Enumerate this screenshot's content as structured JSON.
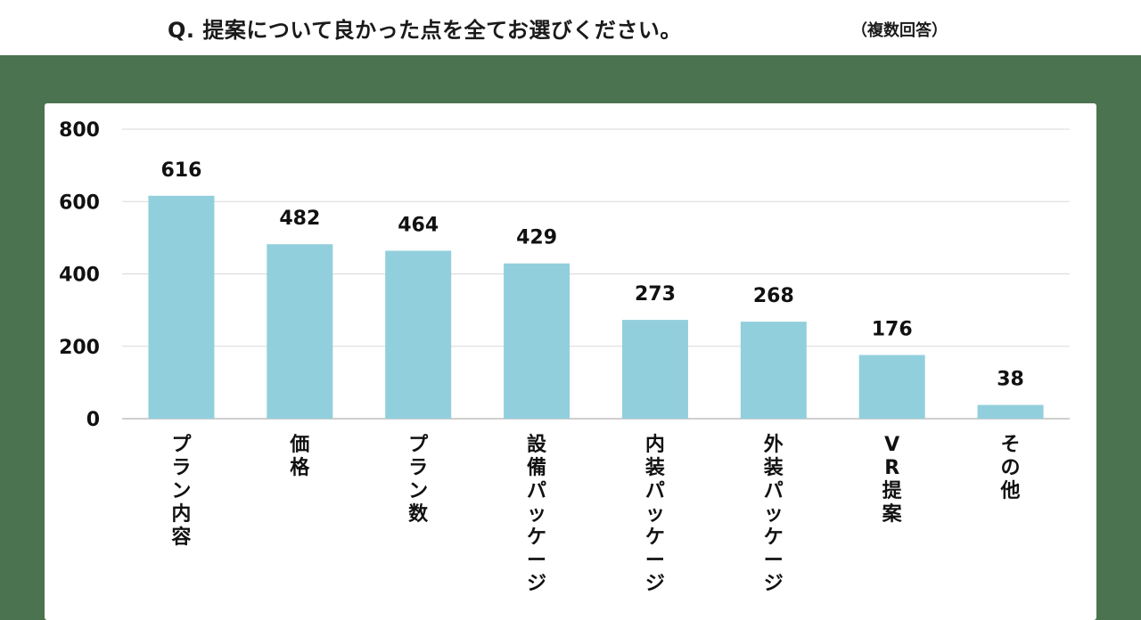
{
  "header": {
    "title": "Q. 提案について良かった点を全てお選びください。",
    "note": "（複数回答）"
  },
  "chart_data": {
    "type": "bar",
    "categories": [
      "プラン内容",
      "価格",
      "プラン数",
      "設備パッケージ",
      "内装パッケージ",
      "外装パッケージ",
      "VR提案",
      "その他"
    ],
    "values": [
      616,
      482,
      464,
      429,
      273,
      268,
      176,
      38
    ],
    "yticks": [
      "0",
      "200",
      "400",
      "600",
      "800"
    ],
    "ylim": [
      0,
      800
    ],
    "grid": true,
    "bar_color": "#92cfdc"
  }
}
